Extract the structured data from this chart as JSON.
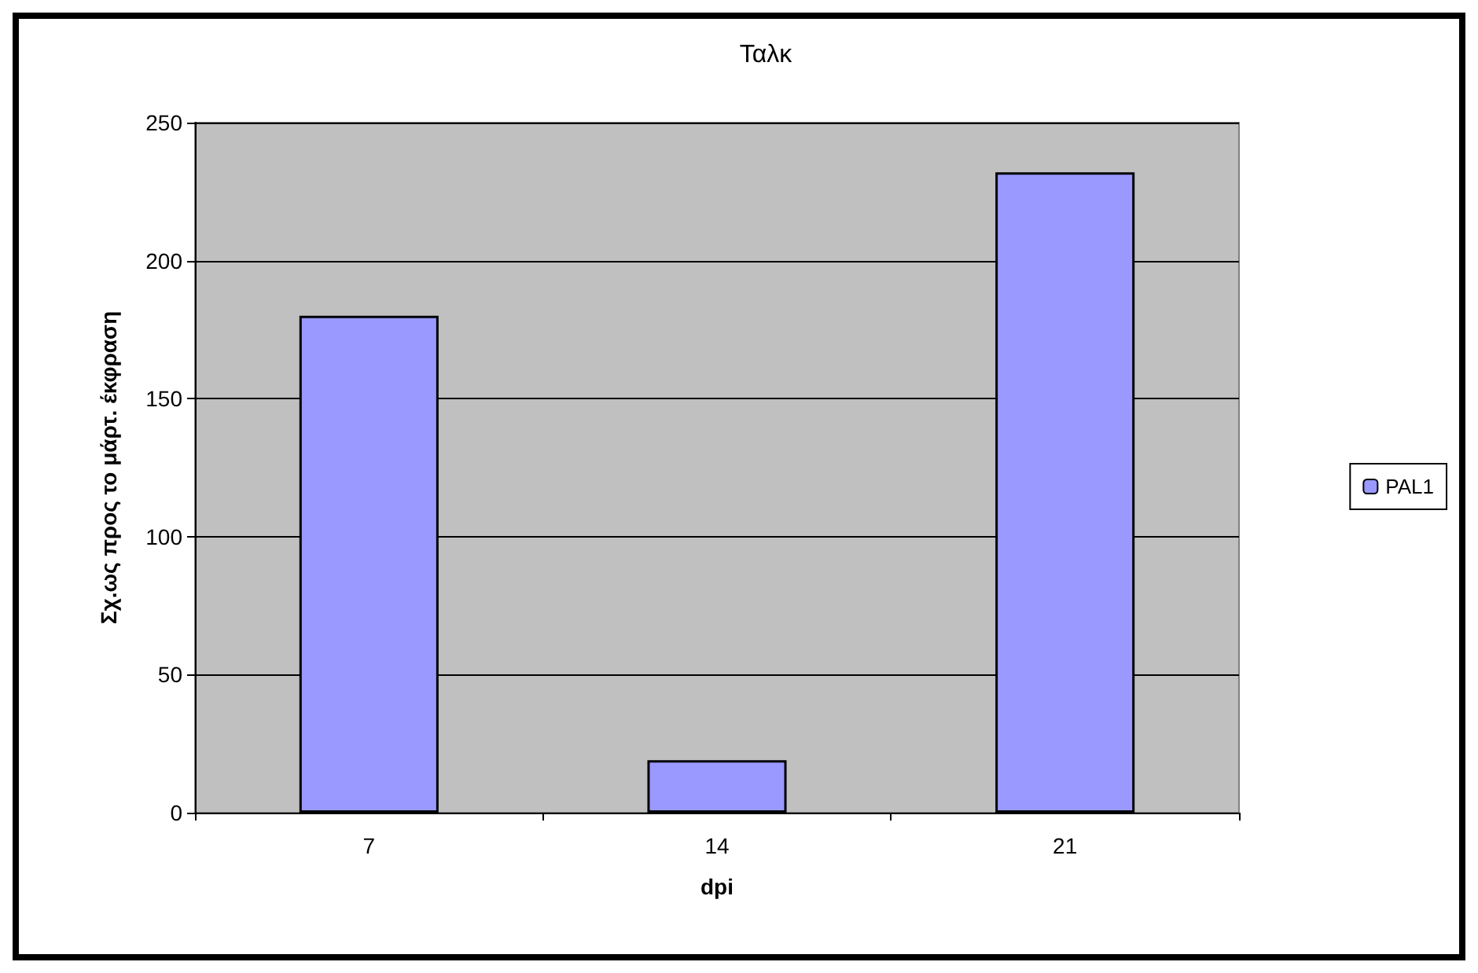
{
  "chart_data": {
    "type": "bar",
    "title": "Ταλκ",
    "xlabel": "dpi",
    "ylabel": "Σχ.ως προς το μάρτ. έκφραση",
    "categories": [
      "7",
      "14",
      "21"
    ],
    "series": [
      {
        "name": "PAL1",
        "color": "#9999ff",
        "values": [
          180,
          19,
          232
        ]
      }
    ],
    "ylim": [
      0,
      250
    ],
    "yticks": [
      0,
      50,
      100,
      150,
      200,
      250
    ],
    "grid": "y",
    "legend": "right"
  }
}
